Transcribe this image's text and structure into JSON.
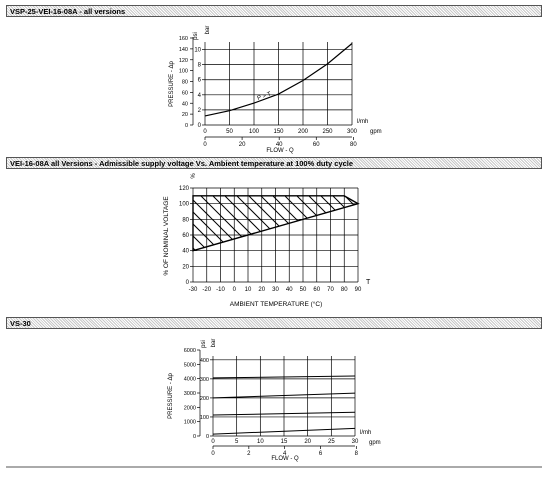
{
  "sections": [
    {
      "title": "VSP-25-VEI-16-08A - all versions"
    },
    {
      "title": "VEI-16-08A all Versions - Admissible supply voltage Vs. Ambient temperature at 100% duty cycle"
    },
    {
      "title": "VS-30"
    }
  ],
  "chart_data": [
    {
      "type": "line",
      "x_label": "l/mh",
      "x_label2": "gpm",
      "ylabel": "PRESSURE - Δp",
      "y_unit_left": "psi",
      "y_unit_right": "bar",
      "xlabel_bottom": "FLOW - Q",
      "x_ticks_lmin": [
        "0",
        "50",
        "100",
        "150",
        "200",
        "250",
        "300"
      ],
      "x_ticks_gpm": [
        "0",
        "20",
        "40",
        "60",
        "80"
      ],
      "y_ticks_psi": [
        "0",
        "20",
        "40",
        "60",
        "80",
        "100",
        "120",
        "140",
        "160"
      ],
      "y_ticks_bar": [
        "0",
        "2",
        "4",
        "6",
        "8",
        "10"
      ],
      "xlim": [
        0,
        300
      ],
      "ylim": [
        0,
        11
      ],
      "series": [
        {
          "name": "P > T",
          "x": [
            0,
            50,
            100,
            150,
            200,
            250,
            300
          ],
          "y": [
            1.2,
            1.9,
            2.9,
            4.1,
            5.9,
            8.1,
            10.8
          ]
        }
      ]
    },
    {
      "type": "area",
      "ylabel": "% OF NOMINAL VOLTAGE",
      "y_unit": "%",
      "xlabel": "AMBIENT TEMPERATURE (°C)",
      "x_axis_letter": "T",
      "x_ticks": [
        "-30",
        "-20",
        "-10",
        "0",
        "10",
        "20",
        "30",
        "40",
        "50",
        "60",
        "70",
        "80",
        "90"
      ],
      "y_ticks": [
        "0",
        "20",
        "40",
        "60",
        "80",
        "100",
        "120"
      ],
      "xlim": [
        -30,
        90
      ],
      "ylim": [
        0,
        120
      ],
      "region": {
        "upper": {
          "x": [
            -30,
            80,
            90
          ],
          "y": [
            110,
            110,
            100
          ]
        },
        "lower": {
          "x": [
            -30,
            90
          ],
          "y": [
            40,
            100
          ]
        }
      }
    },
    {
      "type": "line",
      "ylabel": "PRESSURE - Δp",
      "y_unit_left": "psi",
      "y_unit_right": "bar",
      "xlabel": "FLOW - Q",
      "x_label": "l/mh",
      "x_label2": "gpm",
      "x_ticks_lmin": [
        "0",
        "5",
        "10",
        "15",
        "20",
        "25",
        "30"
      ],
      "x_ticks_gpm": [
        "0",
        "2",
        "4",
        "6",
        "8"
      ],
      "y_ticks_psi": [
        "0",
        "1000",
        "2000",
        "3000",
        "4000",
        "5000",
        "6000"
      ],
      "y_ticks_bar": [
        "0",
        "100",
        "200",
        "300",
        "400"
      ],
      "xlim": [
        0,
        30
      ],
      "ylim": [
        0,
        420
      ],
      "series": [
        {
          "x": [
            0,
            30
          ],
          "y": [
            10,
            40
          ]
        },
        {
          "x": [
            0,
            30
          ],
          "y": [
            110,
            125
          ]
        },
        {
          "x": [
            0,
            30
          ],
          "y": [
            200,
            225
          ]
        },
        {
          "x": [
            0,
            30
          ],
          "y": [
            305,
            315
          ]
        }
      ]
    }
  ]
}
